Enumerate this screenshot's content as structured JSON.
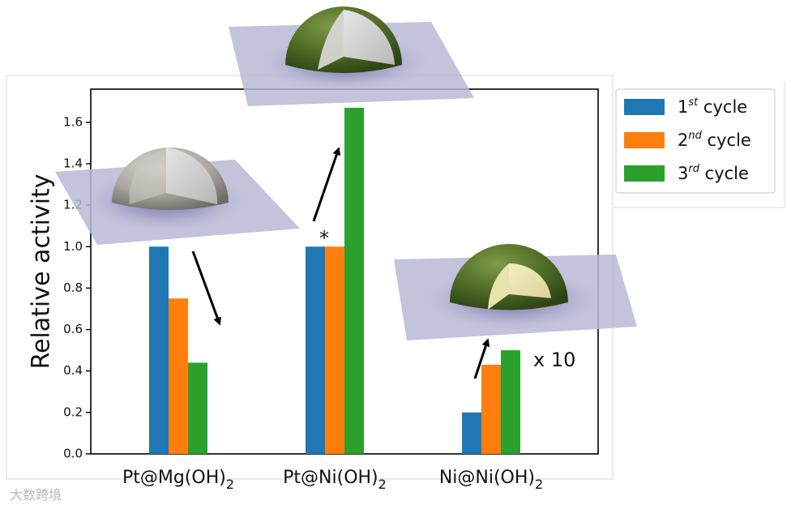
{
  "chart_data": {
    "type": "bar",
    "categories": [
      "Pt@Mg(OH)",
      "Pt@Ni(OH)",
      "Ni@Ni(OH)"
    ],
    "category_subscript": "2",
    "series": [
      {
        "name": "1",
        "superscript": "st",
        "suffix": " cycle",
        "color": "#1f77b4",
        "values": [
          1.0,
          1.0,
          0.2
        ]
      },
      {
        "name": "2",
        "superscript": "nd",
        "suffix": " cycle",
        "color": "#ff7f0e",
        "values": [
          0.75,
          1.0,
          0.43
        ]
      },
      {
        "name": "3",
        "superscript": "rd",
        "suffix": " cycle",
        "color": "#2ca02c",
        "values": [
          0.44,
          1.67,
          0.5
        ]
      }
    ],
    "ylabel": "Relative activity",
    "ylim": [
      0,
      1.76
    ],
    "yticks": [
      "0.0",
      "0.2",
      "0.4",
      "0.6",
      "0.8",
      "1.0",
      "1.2",
      "1.4",
      "1.6"
    ],
    "legend_position": "outside-right-top",
    "annotations": {
      "star": "*",
      "scale": "x 10"
    }
  },
  "watermark": "大数跨境"
}
